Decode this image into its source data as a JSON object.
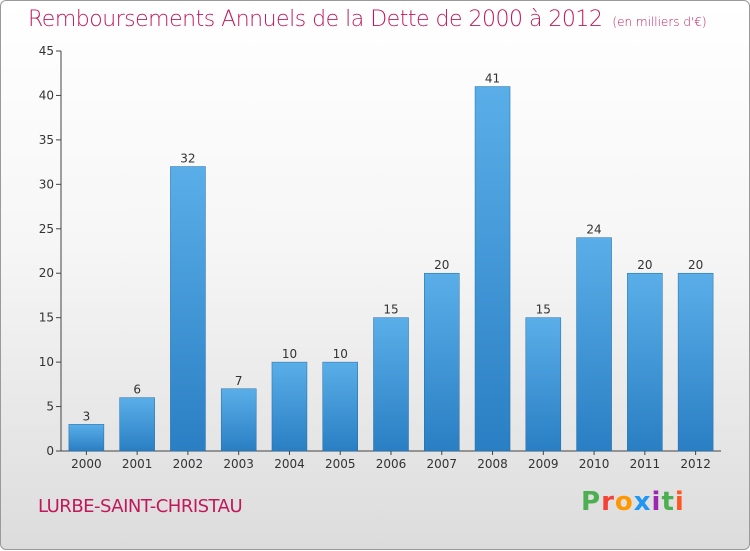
{
  "header": {
    "title": "Remboursements Annuels de la Dette de 2000 à 2012",
    "subtitle": "(en milliers d'€)"
  },
  "footer": {
    "commune": "LURBE-SAINT-CHRISTAU",
    "logo": [
      "P",
      "r",
      "o",
      "x",
      "i",
      "t",
      "i"
    ],
    "logo_colors": [
      "#4caf50",
      "#f44336",
      "#ff9800",
      "#2196f3",
      "#9c27b0",
      "#4caf50",
      "#ff5722"
    ]
  },
  "colors": {
    "title": "#c2185b",
    "bar_top": "#5aaee8",
    "bar_bottom": "#2a7fc4",
    "axis": "#444444",
    "grid": "#cccccc"
  },
  "chart_data": {
    "type": "bar",
    "categories": [
      "2000",
      "2001",
      "2002",
      "2003",
      "2004",
      "2005",
      "2006",
      "2007",
      "2008",
      "2009",
      "2010",
      "2011",
      "2012"
    ],
    "values": [
      3,
      6,
      32,
      7,
      10,
      10,
      15,
      20,
      41,
      15,
      24,
      20,
      20
    ],
    "ylim": [
      0,
      45
    ],
    "yticks": [
      0,
      5,
      10,
      15,
      20,
      25,
      30,
      35,
      40,
      45
    ],
    "grid": false,
    "data_labels": true
  }
}
